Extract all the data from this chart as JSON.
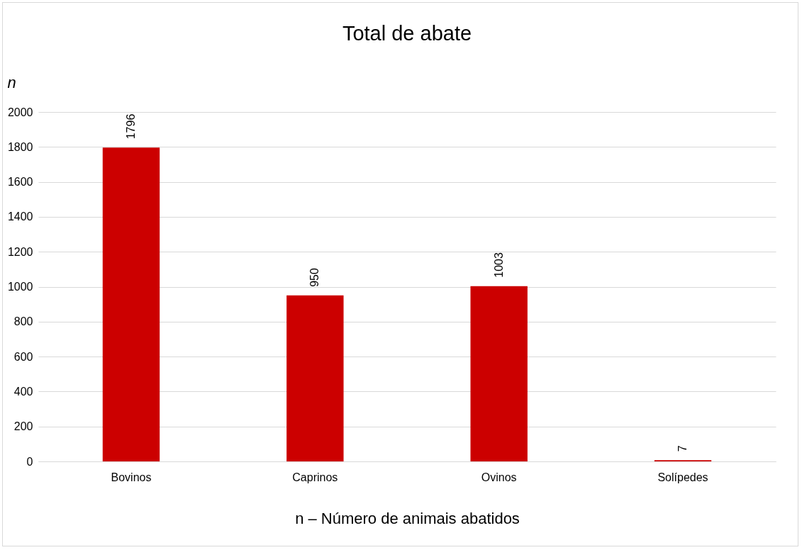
{
  "chart_data": {
    "type": "bar",
    "title": "Total de abate",
    "ylabel": "n",
    "xlabel": "n – Número de animais abatidos",
    "categories": [
      "Bovinos",
      "Caprinos",
      "Ovinos",
      "Solípedes"
    ],
    "values": [
      1796,
      950,
      1003,
      7
    ],
    "color": "#cc0000",
    "ylim": [
      0,
      2000
    ],
    "yticks": [
      0,
      200,
      400,
      600,
      800,
      1000,
      1200,
      1400,
      1600,
      1800,
      2000
    ],
    "grid": "y",
    "data_labels": true
  }
}
